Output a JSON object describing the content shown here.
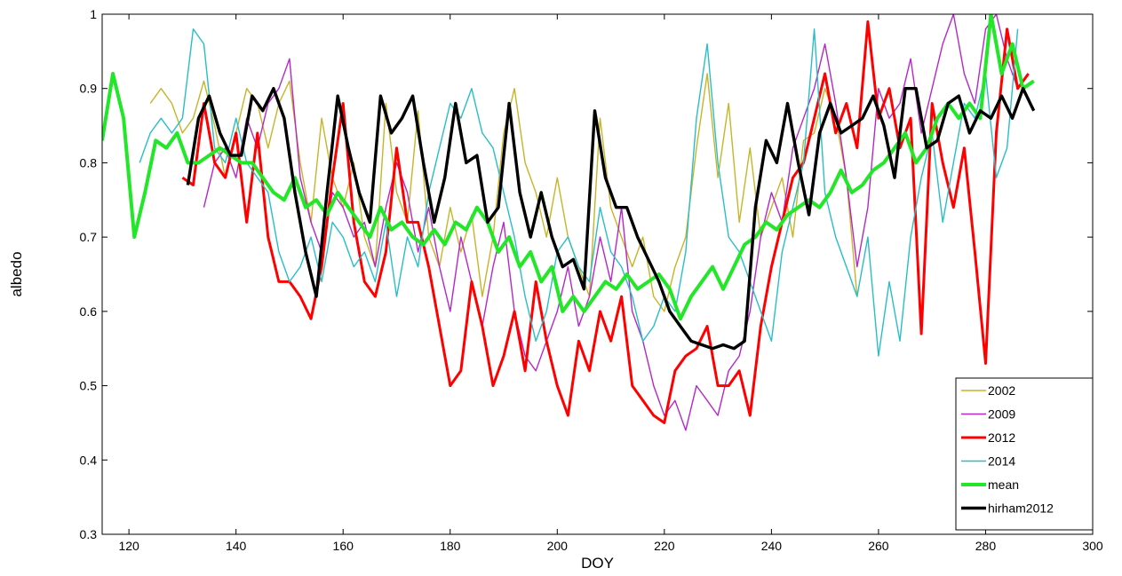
{
  "chart_data": {
    "type": "line",
    "xlabel": "DOY",
    "ylabel": "albedo",
    "xlim": [
      115,
      300
    ],
    "ylim": [
      0.3,
      1.0
    ],
    "xticks": [
      120,
      140,
      160,
      180,
      200,
      220,
      240,
      260,
      280,
      300
    ],
    "yticks": [
      0.3,
      0.4,
      0.5,
      0.6,
      0.7,
      0.8,
      0.9,
      1.0
    ],
    "grid": false,
    "legend_position": "bottom-right",
    "series": [
      {
        "name": "2002",
        "color": "#c8b428",
        "width": 1.4,
        "x": [
          124,
          126,
          128,
          130,
          132,
          134,
          136,
          138,
          140,
          142,
          144,
          146,
          148,
          150,
          152,
          154,
          156,
          158,
          160,
          162,
          164,
          166,
          168,
          170,
          172,
          174,
          176,
          178,
          180,
          182,
          184,
          186,
          188,
          190,
          192,
          194,
          196,
          198,
          200,
          202,
          204,
          206,
          208,
          210,
          212,
          214,
          216,
          218,
          220,
          222,
          224,
          226,
          228,
          230,
          232,
          234,
          236,
          238,
          240,
          242,
          244,
          246,
          248,
          250,
          252,
          254,
          256
        ],
        "y": [
          0.88,
          0.9,
          0.88,
          0.84,
          0.86,
          0.91,
          0.85,
          0.78,
          0.84,
          0.9,
          0.88,
          0.82,
          0.88,
          0.91,
          0.8,
          0.72,
          0.86,
          0.78,
          0.74,
          0.8,
          0.7,
          0.66,
          0.88,
          0.76,
          0.72,
          0.87,
          0.7,
          0.66,
          0.74,
          0.68,
          0.73,
          0.62,
          0.7,
          0.84,
          0.9,
          0.8,
          0.76,
          0.7,
          0.78,
          0.7,
          0.66,
          0.62,
          0.86,
          0.74,
          0.7,
          0.66,
          0.7,
          0.62,
          0.6,
          0.66,
          0.7,
          0.82,
          0.92,
          0.78,
          0.88,
          0.72,
          0.82,
          0.7,
          0.74,
          0.78,
          0.7,
          0.83,
          0.84,
          0.9,
          0.86,
          0.78,
          0.62
        ]
      },
      {
        "name": "2009",
        "color": "#b428c8",
        "width": 1.4,
        "x": [
          134,
          136,
          138,
          140,
          142,
          144,
          146,
          148,
          150,
          152,
          154,
          156,
          158,
          160,
          162,
          164,
          166,
          168,
          170,
          172,
          174,
          176,
          178,
          180,
          182,
          184,
          186,
          188,
          190,
          192,
          194,
          196,
          198,
          200,
          202,
          204,
          206,
          208,
          210,
          212,
          214,
          216,
          218,
          220,
          222,
          224,
          226,
          228,
          230,
          232,
          234,
          236,
          238,
          240,
          242,
          244,
          246,
          248,
          250,
          252,
          254,
          256,
          258,
          260,
          262,
          264,
          266,
          268,
          270,
          272,
          274,
          276,
          278,
          280,
          282,
          284,
          286
        ],
        "y": [
          0.74,
          0.8,
          0.82,
          0.78,
          0.86,
          0.82,
          0.88,
          0.9,
          0.94,
          0.78,
          0.72,
          0.68,
          0.76,
          0.74,
          0.7,
          0.72,
          0.66,
          0.74,
          0.8,
          0.76,
          0.68,
          0.74,
          0.66,
          0.6,
          0.7,
          0.64,
          0.58,
          0.66,
          0.72,
          0.6,
          0.54,
          0.52,
          0.56,
          0.6,
          0.66,
          0.58,
          0.62,
          0.7,
          0.64,
          0.74,
          0.6,
          0.56,
          0.5,
          0.46,
          0.48,
          0.44,
          0.5,
          0.48,
          0.46,
          0.52,
          0.54,
          0.6,
          0.7,
          0.76,
          0.72,
          0.82,
          0.86,
          0.9,
          0.96,
          0.88,
          0.78,
          0.66,
          0.74,
          0.9,
          0.86,
          0.88,
          0.94,
          0.84,
          0.9,
          0.96,
          1.0,
          0.92,
          0.88,
          0.98,
          1.0,
          0.94,
          0.9
        ]
      },
      {
        "name": "2012",
        "color": "#ff0000",
        "width": 3,
        "x": [
          130,
          132,
          134,
          136,
          138,
          140,
          142,
          144,
          146,
          148,
          150,
          152,
          154,
          156,
          158,
          160,
          162,
          164,
          166,
          168,
          170,
          172,
          174,
          176,
          178,
          180,
          182,
          184,
          186,
          188,
          190,
          192,
          194,
          196,
          198,
          200,
          202,
          204,
          206,
          208,
          210,
          212,
          214,
          216,
          218,
          220,
          222,
          224,
          226,
          228,
          230,
          232,
          234,
          236,
          238,
          240,
          242,
          244,
          246,
          248,
          250,
          252,
          254,
          256,
          258,
          260,
          262,
          264,
          266,
          268,
          270,
          272,
          274,
          276,
          278,
          280,
          282,
          284,
          286,
          288
        ],
        "y": [
          0.78,
          0.77,
          0.88,
          0.8,
          0.78,
          0.84,
          0.72,
          0.84,
          0.7,
          0.64,
          0.64,
          0.62,
          0.59,
          0.66,
          0.78,
          0.88,
          0.72,
          0.64,
          0.62,
          0.68,
          0.82,
          0.72,
          0.72,
          0.66,
          0.58,
          0.5,
          0.52,
          0.64,
          0.58,
          0.5,
          0.54,
          0.6,
          0.52,
          0.64,
          0.56,
          0.5,
          0.46,
          0.56,
          0.52,
          0.6,
          0.56,
          0.62,
          0.5,
          0.48,
          0.46,
          0.45,
          0.52,
          0.54,
          0.55,
          0.58,
          0.5,
          0.5,
          0.52,
          0.46,
          0.58,
          0.66,
          0.72,
          0.78,
          0.8,
          0.86,
          0.92,
          0.84,
          0.88,
          0.82,
          0.99,
          0.86,
          0.9,
          0.82,
          0.86,
          0.57,
          0.88,
          0.8,
          0.74,
          0.82,
          0.68,
          0.53,
          0.84,
          0.98,
          0.9,
          0.92
        ]
      },
      {
        "name": "2014",
        "color": "#28bec8",
        "width": 1.4,
        "x": [
          122,
          124,
          126,
          128,
          130,
          132,
          134,
          136,
          138,
          140,
          142,
          144,
          146,
          148,
          150,
          152,
          154,
          156,
          158,
          160,
          162,
          164,
          166,
          168,
          170,
          172,
          174,
          176,
          178,
          180,
          182,
          184,
          186,
          188,
          190,
          192,
          194,
          196,
          198,
          200,
          202,
          204,
          206,
          208,
          210,
          212,
          214,
          216,
          218,
          220,
          222,
          224,
          226,
          228,
          230,
          232,
          234,
          236,
          238,
          240,
          242,
          244,
          246,
          248,
          250,
          252,
          254,
          256,
          258,
          260,
          262,
          264,
          266,
          268,
          270,
          272,
          274,
          276,
          278,
          280,
          282,
          284,
          286
        ],
        "y": [
          0.8,
          0.84,
          0.86,
          0.84,
          0.86,
          0.98,
          0.96,
          0.82,
          0.8,
          0.86,
          0.8,
          0.78,
          0.76,
          0.68,
          0.64,
          0.66,
          0.7,
          0.64,
          0.72,
          0.7,
          0.66,
          0.68,
          0.64,
          0.72,
          0.62,
          0.7,
          0.66,
          0.76,
          0.82,
          0.88,
          0.86,
          0.9,
          0.84,
          0.82,
          0.76,
          0.7,
          0.62,
          0.56,
          0.6,
          0.68,
          0.7,
          0.66,
          0.64,
          0.74,
          0.68,
          0.66,
          0.62,
          0.56,
          0.58,
          0.62,
          0.6,
          0.68,
          0.86,
          0.96,
          0.8,
          0.7,
          0.68,
          0.64,
          0.6,
          0.56,
          0.68,
          0.74,
          0.8,
          0.98,
          0.76,
          0.7,
          0.66,
          0.62,
          0.7,
          0.54,
          0.64,
          0.56,
          0.7,
          0.78,
          0.84,
          0.72,
          0.8,
          0.88,
          0.86,
          0.92,
          0.78,
          0.82,
          0.98
        ]
      },
      {
        "name": "mean",
        "color": "#22e628",
        "width": 4,
        "x": [
          115,
          117,
          119,
          121,
          123,
          125,
          127,
          129,
          131,
          133,
          135,
          137,
          139,
          141,
          143,
          145,
          147,
          149,
          151,
          153,
          155,
          157,
          159,
          161,
          163,
          165,
          167,
          169,
          171,
          173,
          175,
          177,
          179,
          181,
          183,
          185,
          187,
          189,
          191,
          193,
          195,
          197,
          199,
          201,
          203,
          205,
          207,
          209,
          211,
          213,
          215,
          217,
          219,
          221,
          223,
          225,
          227,
          229,
          231,
          233,
          235,
          237,
          239,
          241,
          243,
          245,
          247,
          249,
          251,
          253,
          255,
          257,
          259,
          261,
          263,
          265,
          267,
          269,
          271,
          273,
          275,
          277,
          279,
          281,
          283,
          285,
          287,
          289
        ],
        "y": [
          0.83,
          0.92,
          0.86,
          0.7,
          0.76,
          0.83,
          0.82,
          0.84,
          0.8,
          0.8,
          0.81,
          0.82,
          0.81,
          0.8,
          0.8,
          0.78,
          0.76,
          0.75,
          0.78,
          0.74,
          0.75,
          0.73,
          0.76,
          0.74,
          0.72,
          0.7,
          0.74,
          0.71,
          0.72,
          0.7,
          0.69,
          0.71,
          0.69,
          0.72,
          0.71,
          0.74,
          0.72,
          0.68,
          0.7,
          0.66,
          0.68,
          0.64,
          0.66,
          0.6,
          0.62,
          0.6,
          0.62,
          0.64,
          0.63,
          0.65,
          0.63,
          0.64,
          0.65,
          0.63,
          0.59,
          0.62,
          0.64,
          0.66,
          0.63,
          0.66,
          0.69,
          0.7,
          0.72,
          0.71,
          0.73,
          0.74,
          0.75,
          0.74,
          0.76,
          0.79,
          0.76,
          0.77,
          0.79,
          0.8,
          0.82,
          0.84,
          0.8,
          0.82,
          0.86,
          0.88,
          0.86,
          0.88,
          0.86,
          1.0,
          0.92,
          0.96,
          0.9,
          0.91
        ]
      },
      {
        "name": "hirham2012",
        "color": "#000000",
        "width": 3.4,
        "x": [
          131,
          133,
          135,
          137,
          139,
          141,
          143,
          145,
          147,
          149,
          151,
          153,
          155,
          157,
          159,
          161,
          163,
          165,
          167,
          169,
          171,
          173,
          175,
          177,
          179,
          181,
          183,
          185,
          187,
          189,
          191,
          193,
          195,
          197,
          199,
          201,
          203,
          205,
          207,
          209,
          211,
          213,
          215,
          217,
          219,
          221,
          223,
          225,
          227,
          229,
          231,
          233,
          235,
          237,
          239,
          241,
          243,
          245,
          247,
          249,
          251,
          253,
          255,
          257,
          259,
          261,
          263,
          265,
          267,
          269,
          271,
          273,
          275,
          277,
          279,
          281,
          283,
          285,
          287,
          289
        ],
        "y": [
          0.77,
          0.86,
          0.89,
          0.84,
          0.81,
          0.81,
          0.89,
          0.87,
          0.9,
          0.86,
          0.76,
          0.68,
          0.62,
          0.76,
          0.89,
          0.82,
          0.76,
          0.72,
          0.89,
          0.84,
          0.86,
          0.89,
          0.8,
          0.72,
          0.78,
          0.88,
          0.8,
          0.81,
          0.72,
          0.74,
          0.88,
          0.76,
          0.7,
          0.76,
          0.7,
          0.66,
          0.67,
          0.63,
          0.87,
          0.78,
          0.74,
          0.74,
          0.7,
          0.67,
          0.64,
          0.6,
          0.58,
          0.56,
          0.555,
          0.55,
          0.555,
          0.55,
          0.56,
          0.74,
          0.83,
          0.8,
          0.88,
          0.8,
          0.73,
          0.84,
          0.88,
          0.84,
          0.85,
          0.86,
          0.89,
          0.85,
          0.78,
          0.9,
          0.9,
          0.82,
          0.83,
          0.88,
          0.89,
          0.84,
          0.87,
          0.86,
          0.89,
          0.86,
          0.9,
          0.87
        ]
      }
    ]
  }
}
